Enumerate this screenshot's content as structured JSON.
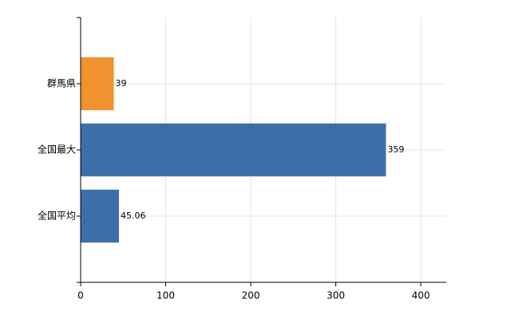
{
  "chart_data": {
    "type": "hbar",
    "categories": [
      "群馬県",
      "全国最大",
      "全国平均"
    ],
    "values": [
      39,
      359,
      45.06
    ],
    "colors": [
      "#f0922e",
      "#3e6ea9",
      "#3e6ea9"
    ],
    "xlim": [
      0,
      430
    ],
    "xticks": [
      0,
      100,
      200,
      300,
      400
    ],
    "grid": true
  }
}
